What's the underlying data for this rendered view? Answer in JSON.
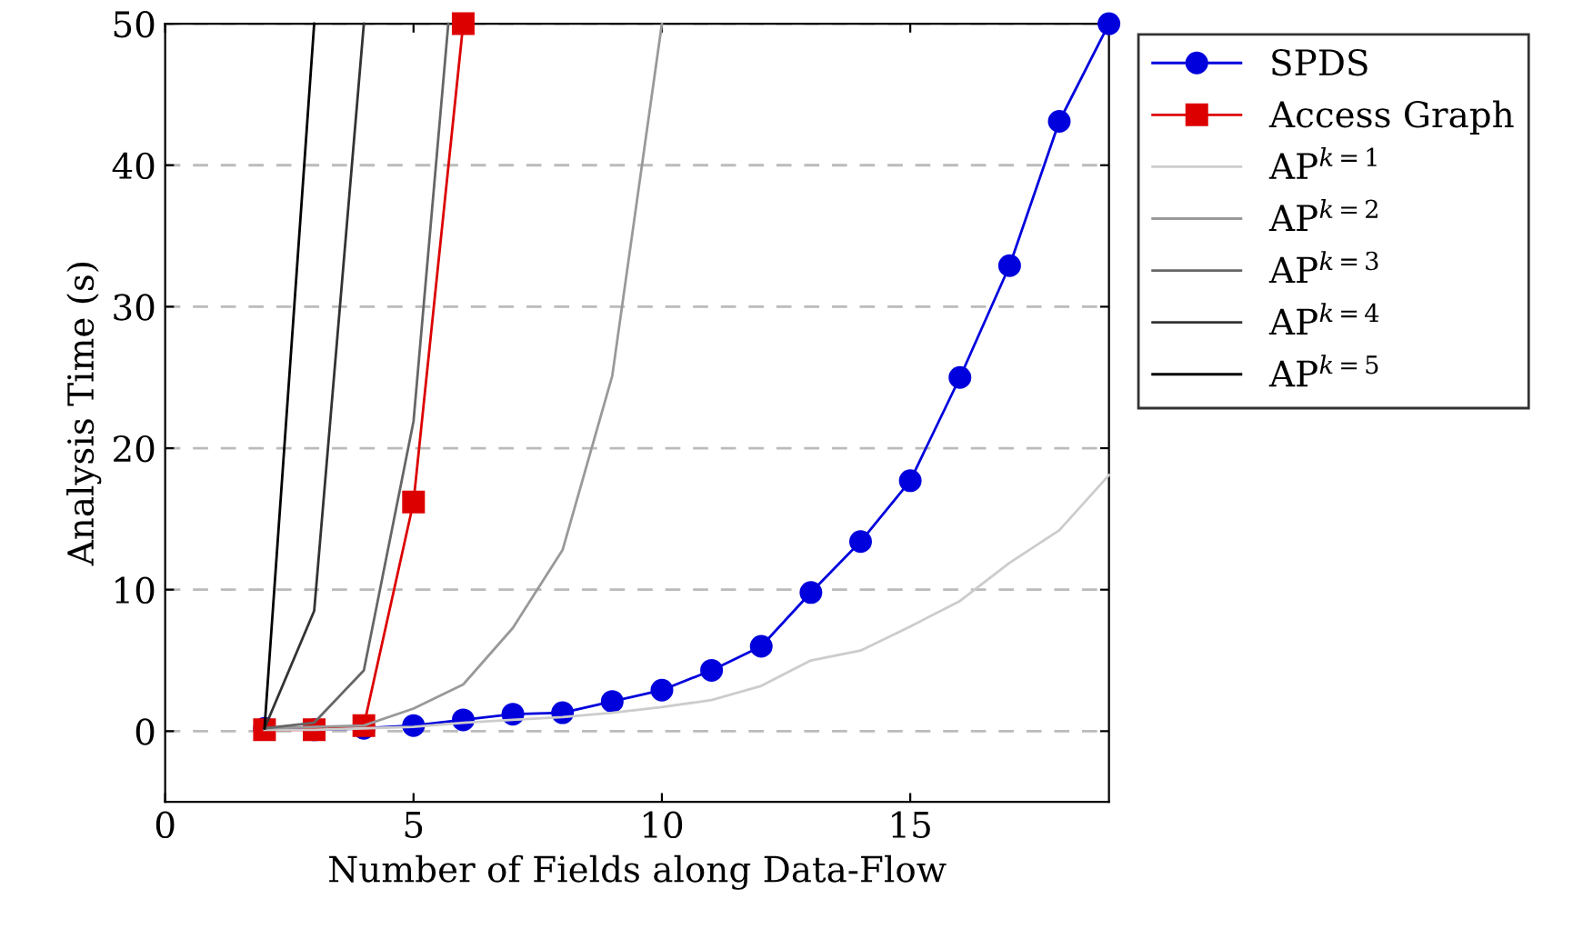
{
  "chart_data": {
    "type": "line",
    "xlabel": "Number of Fields along Data-Flow",
    "ylabel": "Analysis Time (s)",
    "xlim": [
      0,
      19
    ],
    "ylim": [
      -5,
      50
    ],
    "xticks": [
      0,
      5,
      10,
      15
    ],
    "yticks": [
      0,
      10,
      20,
      30,
      40,
      50
    ],
    "grid": "y",
    "legend": "top right",
    "series": [
      {
        "name": "SPDS",
        "color": "#0000dd",
        "marker": "circle",
        "x": [
          2,
          3,
          4,
          5,
          6,
          7,
          8,
          9,
          10,
          11,
          12,
          13,
          14,
          15,
          16,
          17,
          18,
          19
        ],
        "values": [
          0.2,
          0.1,
          0.2,
          0.4,
          0.8,
          1.2,
          1.3,
          2.1,
          2.9,
          4.3,
          6.0,
          9.8,
          13.4,
          17.7,
          25.0,
          32.9,
          43.1,
          50
        ]
      },
      {
        "name": "Access Graph",
        "color": "#dd0000",
        "marker": "square",
        "x": [
          2,
          3,
          4,
          5,
          6
        ],
        "values": [
          0.1,
          0.1,
          0.4,
          16.2,
          50
        ]
      },
      {
        "name": "AP$^{k=1}$",
        "color": "#cccccc",
        "marker": "none",
        "x": [
          2,
          3,
          4,
          5,
          6,
          7,
          8,
          9,
          10,
          11,
          12,
          13,
          14,
          15,
          16,
          17,
          18,
          19
        ],
        "values": [
          0.1,
          0.1,
          0.2,
          0.3,
          0.6,
          0.8,
          1.0,
          1.3,
          1.7,
          2.2,
          3.2,
          5.0,
          5.7,
          7.4,
          9.2,
          11.9,
          14.2,
          18.1
        ]
      },
      {
        "name": "AP$^{k=2}$",
        "color": "#999999",
        "marker": "none",
        "x": [
          2,
          3,
          4,
          5,
          6,
          7,
          8,
          9,
          10
        ],
        "values": [
          0.2,
          0.3,
          0.4,
          1.6,
          3.3,
          7.3,
          12.8,
          25.1,
          50
        ]
      },
      {
        "name": "AP$^{k=3}$",
        "color": "#666666",
        "marker": "none",
        "x": [
          2,
          3,
          4,
          5,
          5.7
        ],
        "values": [
          0.2,
          0.6,
          4.3,
          21.9,
          50
        ]
      },
      {
        "name": "AP$^{k=4}$",
        "color": "#333333",
        "marker": "none",
        "x": [
          2,
          3,
          4
        ],
        "values": [
          0.2,
          8.5,
          50
        ]
      },
      {
        "name": "AP$^{k=5}$",
        "color": "#000000",
        "marker": "none",
        "x": [
          2,
          3
        ],
        "values": [
          0.2,
          50
        ]
      }
    ]
  }
}
